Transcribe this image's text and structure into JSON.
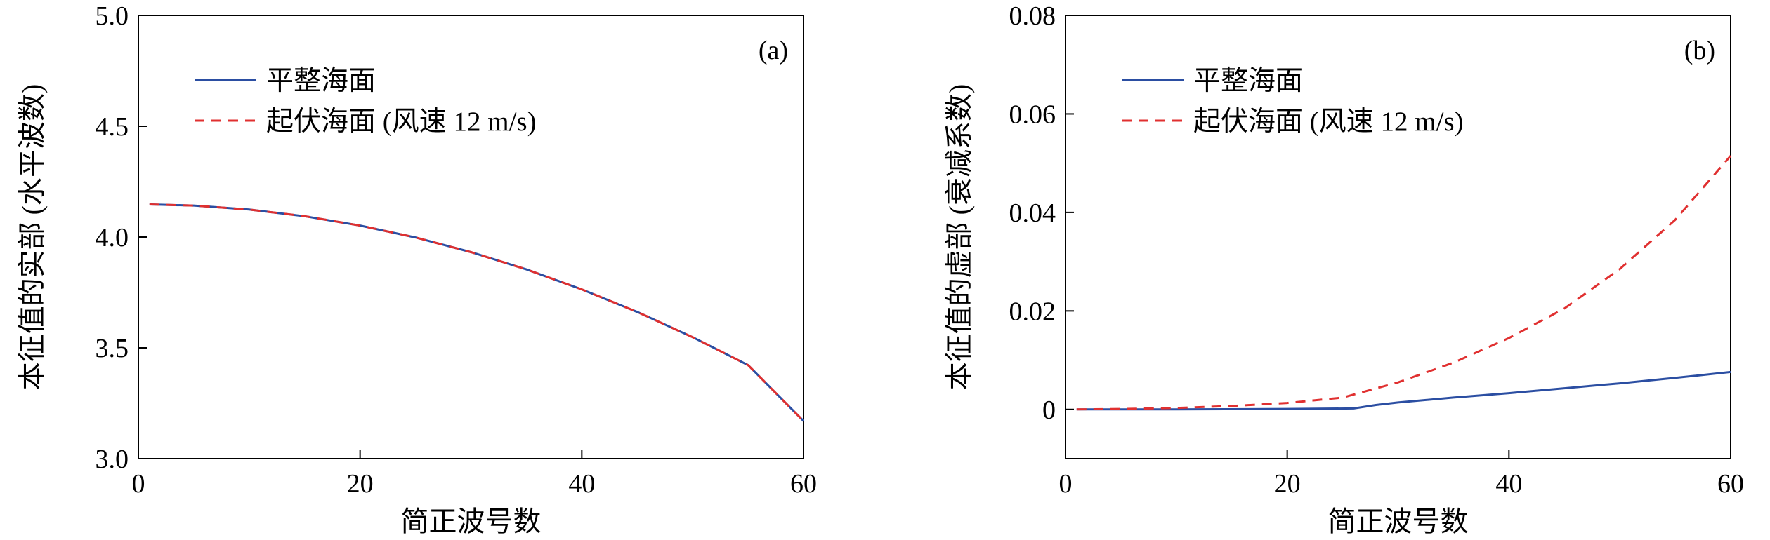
{
  "chart_data": [
    {
      "type": "line",
      "panel_label": "(a)",
      "xlabel": "简正波号数",
      "ylabel": "本征值的实部 (水平波数)",
      "xlim": [
        0,
        60
      ],
      "ylim": [
        3.0,
        5.0
      ],
      "xticks": [
        0,
        20,
        40,
        60
      ],
      "xtick_labels": [
        "0",
        "20",
        "40",
        "60"
      ],
      "yticks": [
        3.0,
        3.5,
        4.0,
        4.5,
        5.0
      ],
      "ytick_labels": [
        "3.0",
        "3.5",
        "4.0",
        "4.5",
        "5.0"
      ],
      "legend_position": "top-left",
      "series": [
        {
          "name": "平整海面",
          "color": "#2b4ea2",
          "style": "solid",
          "x": [
            1,
            5,
            10,
            15,
            20,
            25,
            30,
            35,
            40,
            45,
            50,
            55,
            60
          ],
          "y": [
            4.147,
            4.142,
            4.124,
            4.094,
            4.052,
            3.998,
            3.932,
            3.854,
            3.764,
            3.662,
            3.548,
            3.422,
            3.17
          ]
        },
        {
          "name": "起伏海面 (风速 12 m/s)",
          "color": "#e03030",
          "style": "dashed",
          "x": [
            1,
            5,
            10,
            15,
            20,
            25,
            30,
            35,
            40,
            45,
            50,
            55,
            60
          ],
          "y": [
            4.147,
            4.142,
            4.124,
            4.094,
            4.052,
            3.998,
            3.932,
            3.854,
            3.764,
            3.662,
            3.548,
            3.422,
            3.17
          ]
        }
      ]
    },
    {
      "type": "line",
      "panel_label": "(b)",
      "xlabel": "简正波号数",
      "ylabel": "本征值的虚部 (衰减系数)",
      "xlim": [
        0,
        60
      ],
      "ylim": [
        -0.01,
        0.08
      ],
      "xticks": [
        0,
        20,
        40,
        60
      ],
      "xtick_labels": [
        "0",
        "20",
        "40",
        "60"
      ],
      "yticks": [
        0,
        0.02,
        0.04,
        0.06,
        0.08
      ],
      "ytick_labels": [
        "0",
        "0.02",
        "0.04",
        "0.06",
        "0.08"
      ],
      "legend_position": "top-left",
      "series": [
        {
          "name": "平整海面",
          "color": "#2b4ea2",
          "style": "solid",
          "x": [
            1,
            10,
            20,
            26,
            28,
            30,
            35,
            40,
            45,
            50,
            55,
            60
          ],
          "y": [
            0,
            0,
            0.0001,
            0.0002,
            0.0009,
            0.0014,
            0.0024,
            0.0033,
            0.0043,
            0.0053,
            0.0064,
            0.0076
          ]
        },
        {
          "name": "起伏海面 (风速 12 m/s)",
          "color": "#e03030",
          "style": "dashed",
          "x": [
            1,
            5,
            10,
            15,
            20,
            25,
            30,
            35,
            40,
            45,
            50,
            55,
            60
          ],
          "y": [
            0,
            0.0001,
            0.0003,
            0.0007,
            0.0013,
            0.0024,
            0.0055,
            0.0095,
            0.0145,
            0.0205,
            0.0285,
            0.0385,
            0.0515
          ]
        }
      ]
    }
  ]
}
